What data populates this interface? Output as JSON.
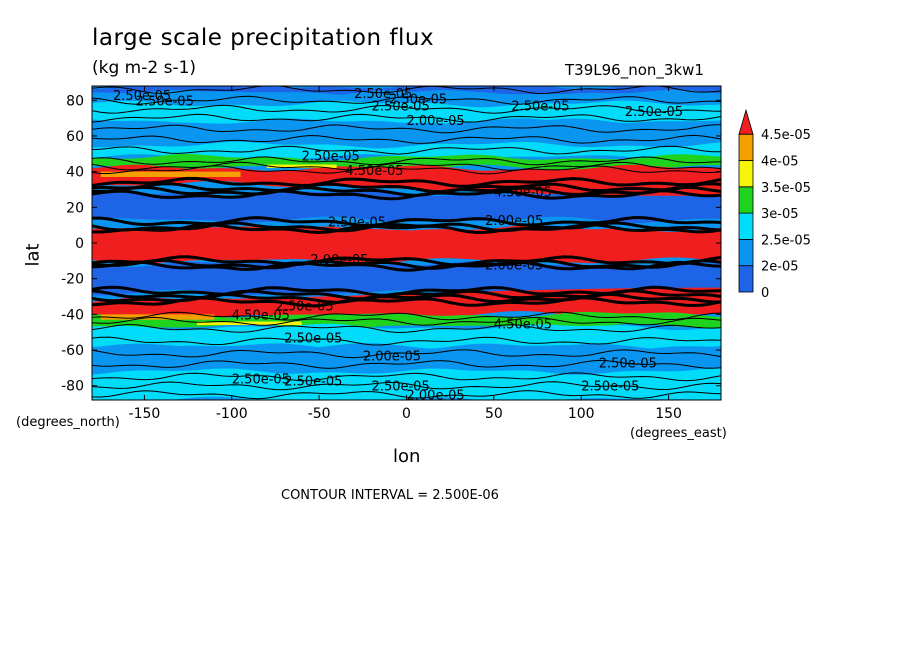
{
  "chart_data": {
    "type": "heatmap",
    "title": "large scale precipitation flux",
    "units": "(kg m-2 s-1)",
    "dataset_label": "T39L96_non_3kw1",
    "xlabel": "lon",
    "ylabel": "lat",
    "x_units": "(degrees_east)",
    "y_units": "(degrees_north)",
    "footnote": "CONTOUR INTERVAL = 2.500E-06",
    "xlim": [
      -180,
      180
    ],
    "ylim": [
      -88,
      88
    ],
    "x_ticks": [
      -150,
      -100,
      -50,
      0,
      50,
      100,
      150
    ],
    "y_ticks": [
      -80,
      -60,
      -40,
      -20,
      0,
      20,
      40,
      60,
      80
    ],
    "colorbar": {
      "levels": [
        0,
        2e-05,
        2.5e-05,
        3e-05,
        3.5e-05,
        4e-05,
        4.5e-05
      ],
      "labels": [
        "0",
        "2e-05",
        "2.5e-05",
        "3e-05",
        "3.5e-05",
        "4e-05",
        "4.5e-05"
      ],
      "colors": [
        "#1e64e6",
        "#0a96f0",
        "#00dcfa",
        "#1ed21e",
        "#f5f50a",
        "#f5a000",
        "#f01e1e"
      ]
    },
    "contour_labels": [
      "2.50e-05",
      "2.00e-05",
      "4.50e-05"
    ],
    "bands": [
      {
        "lat": [
          84,
          88
        ],
        "level": 0
      },
      {
        "lat": [
          78,
          84
        ],
        "level": 1
      },
      {
        "lat": [
          68,
          78
        ],
        "level": 2
      },
      {
        "lat": [
          55,
          68
        ],
        "level": 1
      },
      {
        "lat": [
          48,
          55
        ],
        "level": 2
      },
      {
        "lat": [
          42,
          48
        ],
        "level": 3
      },
      {
        "lat": [
          33,
          42
        ],
        "level": 6
      },
      {
        "lat": [
          13,
          28
        ],
        "level": 0
      },
      {
        "lat": [
          -10,
          8
        ],
        "level": 6
      },
      {
        "lat": [
          -28,
          -12
        ],
        "level": 0
      },
      {
        "lat": [
          -40,
          -32
        ],
        "level": 6
      },
      {
        "lat": [
          -47,
          -40
        ],
        "level": 3
      },
      {
        "lat": [
          -58,
          -47
        ],
        "level": 2
      },
      {
        "lat": [
          -72,
          -58
        ],
        "level": 1
      },
      {
        "lat": [
          -88,
          -72
        ],
        "level": 2
      }
    ]
  }
}
